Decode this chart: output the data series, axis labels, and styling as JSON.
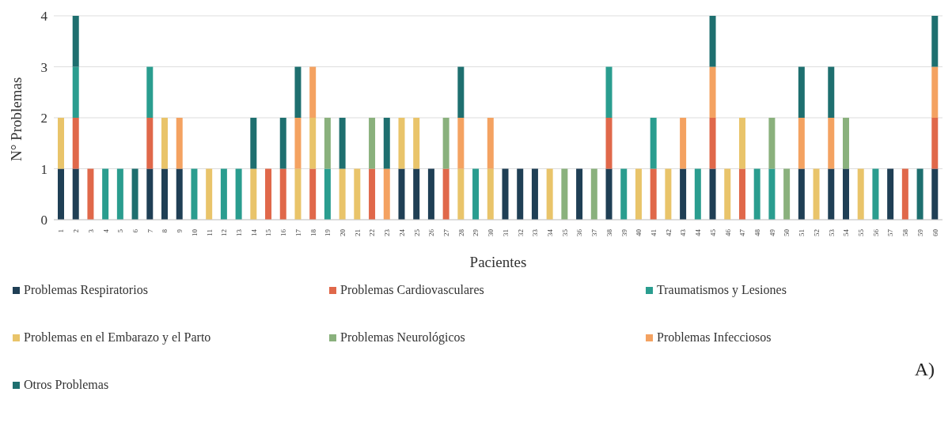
{
  "chart_data": {
    "type": "bar",
    "stacked": true,
    "xlabel": "Pacientes",
    "ylabel": "N° Problemas",
    "categories": [
      "1",
      "2",
      "3",
      "4",
      "5",
      "6",
      "7",
      "8",
      "9",
      "10",
      "11",
      "12",
      "13",
      "14",
      "15",
      "16",
      "17",
      "18",
      "19",
      "20",
      "21",
      "22",
      "23",
      "24",
      "25",
      "26",
      "27",
      "28",
      "29",
      "30",
      "31",
      "32",
      "33",
      "34",
      "35",
      "36",
      "37",
      "38",
      "39",
      "40",
      "41",
      "42",
      "43",
      "44",
      "45",
      "46",
      "47",
      "48",
      "49",
      "50",
      "51",
      "52",
      "53",
      "54",
      "55",
      "56",
      "57",
      "58",
      "59",
      "60"
    ],
    "series": [
      {
        "name": "Problemas Respiratorios",
        "color": "#1f3f55",
        "values": [
          1,
          1,
          null,
          null,
          null,
          null,
          1,
          1,
          1,
          null,
          null,
          null,
          null,
          null,
          null,
          null,
          null,
          null,
          null,
          null,
          null,
          null,
          null,
          1,
          1,
          1,
          null,
          null,
          null,
          null,
          1,
          1,
          1,
          null,
          null,
          1,
          null,
          1,
          null,
          null,
          null,
          null,
          1,
          null,
          1,
          null,
          null,
          null,
          null,
          null,
          1,
          null,
          1,
          1,
          null,
          null,
          1,
          null,
          null,
          1
        ]
      },
      {
        "name": "Problemas Cardiovasculares",
        "color": "#e0684a",
        "values": [
          null,
          1,
          1,
          null,
          null,
          null,
          1,
          null,
          null,
          null,
          null,
          null,
          null,
          null,
          1,
          1,
          null,
          1,
          null,
          null,
          null,
          1,
          null,
          null,
          null,
          null,
          1,
          null,
          null,
          null,
          null,
          null,
          null,
          null,
          null,
          null,
          null,
          1,
          null,
          null,
          1,
          null,
          null,
          null,
          1,
          null,
          1,
          null,
          null,
          null,
          null,
          null,
          null,
          null,
          null,
          null,
          null,
          1,
          null,
          1
        ]
      },
      {
        "name": "Traumatismos y Lesiones",
        "color": "#2a9d8f",
        "values": [
          null,
          1,
          null,
          1,
          1,
          null,
          1,
          null,
          null,
          1,
          null,
          1,
          1,
          null,
          null,
          null,
          null,
          null,
          1,
          null,
          null,
          null,
          null,
          null,
          null,
          null,
          null,
          null,
          1,
          null,
          null,
          null,
          null,
          null,
          null,
          null,
          null,
          1,
          1,
          null,
          1,
          null,
          null,
          1,
          null,
          null,
          null,
          1,
          1,
          null,
          null,
          null,
          null,
          null,
          null,
          1,
          null,
          null,
          null,
          null
        ]
      },
      {
        "name": "Problemas en el Embarazo y el Parto",
        "color": "#e9c46a",
        "values": [
          1,
          null,
          null,
          null,
          null,
          null,
          null,
          1,
          null,
          null,
          1,
          null,
          null,
          1,
          null,
          null,
          1,
          1,
          null,
          1,
          1,
          null,
          null,
          1,
          1,
          null,
          null,
          1,
          null,
          1,
          null,
          null,
          null,
          1,
          null,
          null,
          null,
          null,
          null,
          1,
          null,
          1,
          null,
          null,
          null,
          1,
          1,
          null,
          null,
          null,
          null,
          1,
          null,
          null,
          1,
          null,
          null,
          null,
          null,
          null
        ]
      },
      {
        "name": "Problemas Neurológicos",
        "color": "#8ab17d",
        "values": [
          null,
          null,
          null,
          null,
          null,
          null,
          null,
          null,
          null,
          null,
          null,
          null,
          null,
          null,
          null,
          null,
          null,
          null,
          1,
          null,
          null,
          1,
          null,
          null,
          null,
          null,
          1,
          null,
          null,
          null,
          null,
          null,
          null,
          null,
          1,
          null,
          1,
          null,
          null,
          null,
          null,
          null,
          null,
          null,
          null,
          null,
          null,
          null,
          1,
          1,
          null,
          null,
          null,
          1,
          null,
          null,
          null,
          null,
          null,
          null
        ]
      },
      {
        "name": "Problemas Infecciosos",
        "color": "#f4a261",
        "values": [
          null,
          null,
          null,
          null,
          null,
          null,
          null,
          null,
          1,
          null,
          null,
          null,
          null,
          null,
          null,
          null,
          1,
          1,
          null,
          null,
          null,
          null,
          1,
          null,
          null,
          null,
          null,
          1,
          null,
          1,
          null,
          null,
          null,
          null,
          null,
          null,
          null,
          null,
          null,
          null,
          null,
          null,
          1,
          null,
          1,
          null,
          null,
          null,
          null,
          null,
          1,
          null,
          1,
          null,
          null,
          null,
          null,
          null,
          null,
          1
        ]
      },
      {
        "name": "Otros Problemas",
        "color": "#1e6f6f",
        "values": [
          null,
          1,
          null,
          null,
          null,
          1,
          null,
          null,
          null,
          null,
          null,
          null,
          null,
          1,
          null,
          1,
          1,
          null,
          null,
          1,
          null,
          null,
          1,
          null,
          null,
          null,
          null,
          1,
          null,
          null,
          null,
          null,
          null,
          null,
          null,
          null,
          null,
          null,
          null,
          null,
          null,
          null,
          null,
          null,
          1,
          null,
          null,
          null,
          null,
          null,
          1,
          null,
          1,
          null,
          null,
          null,
          null,
          null,
          1,
          1
        ]
      }
    ],
    "ylim": [
      0,
      4
    ],
    "yticks": [
      0,
      1,
      2,
      3,
      4
    ],
    "grid": "y",
    "legend": "bottom",
    "annotations": [
      "A)"
    ]
  }
}
